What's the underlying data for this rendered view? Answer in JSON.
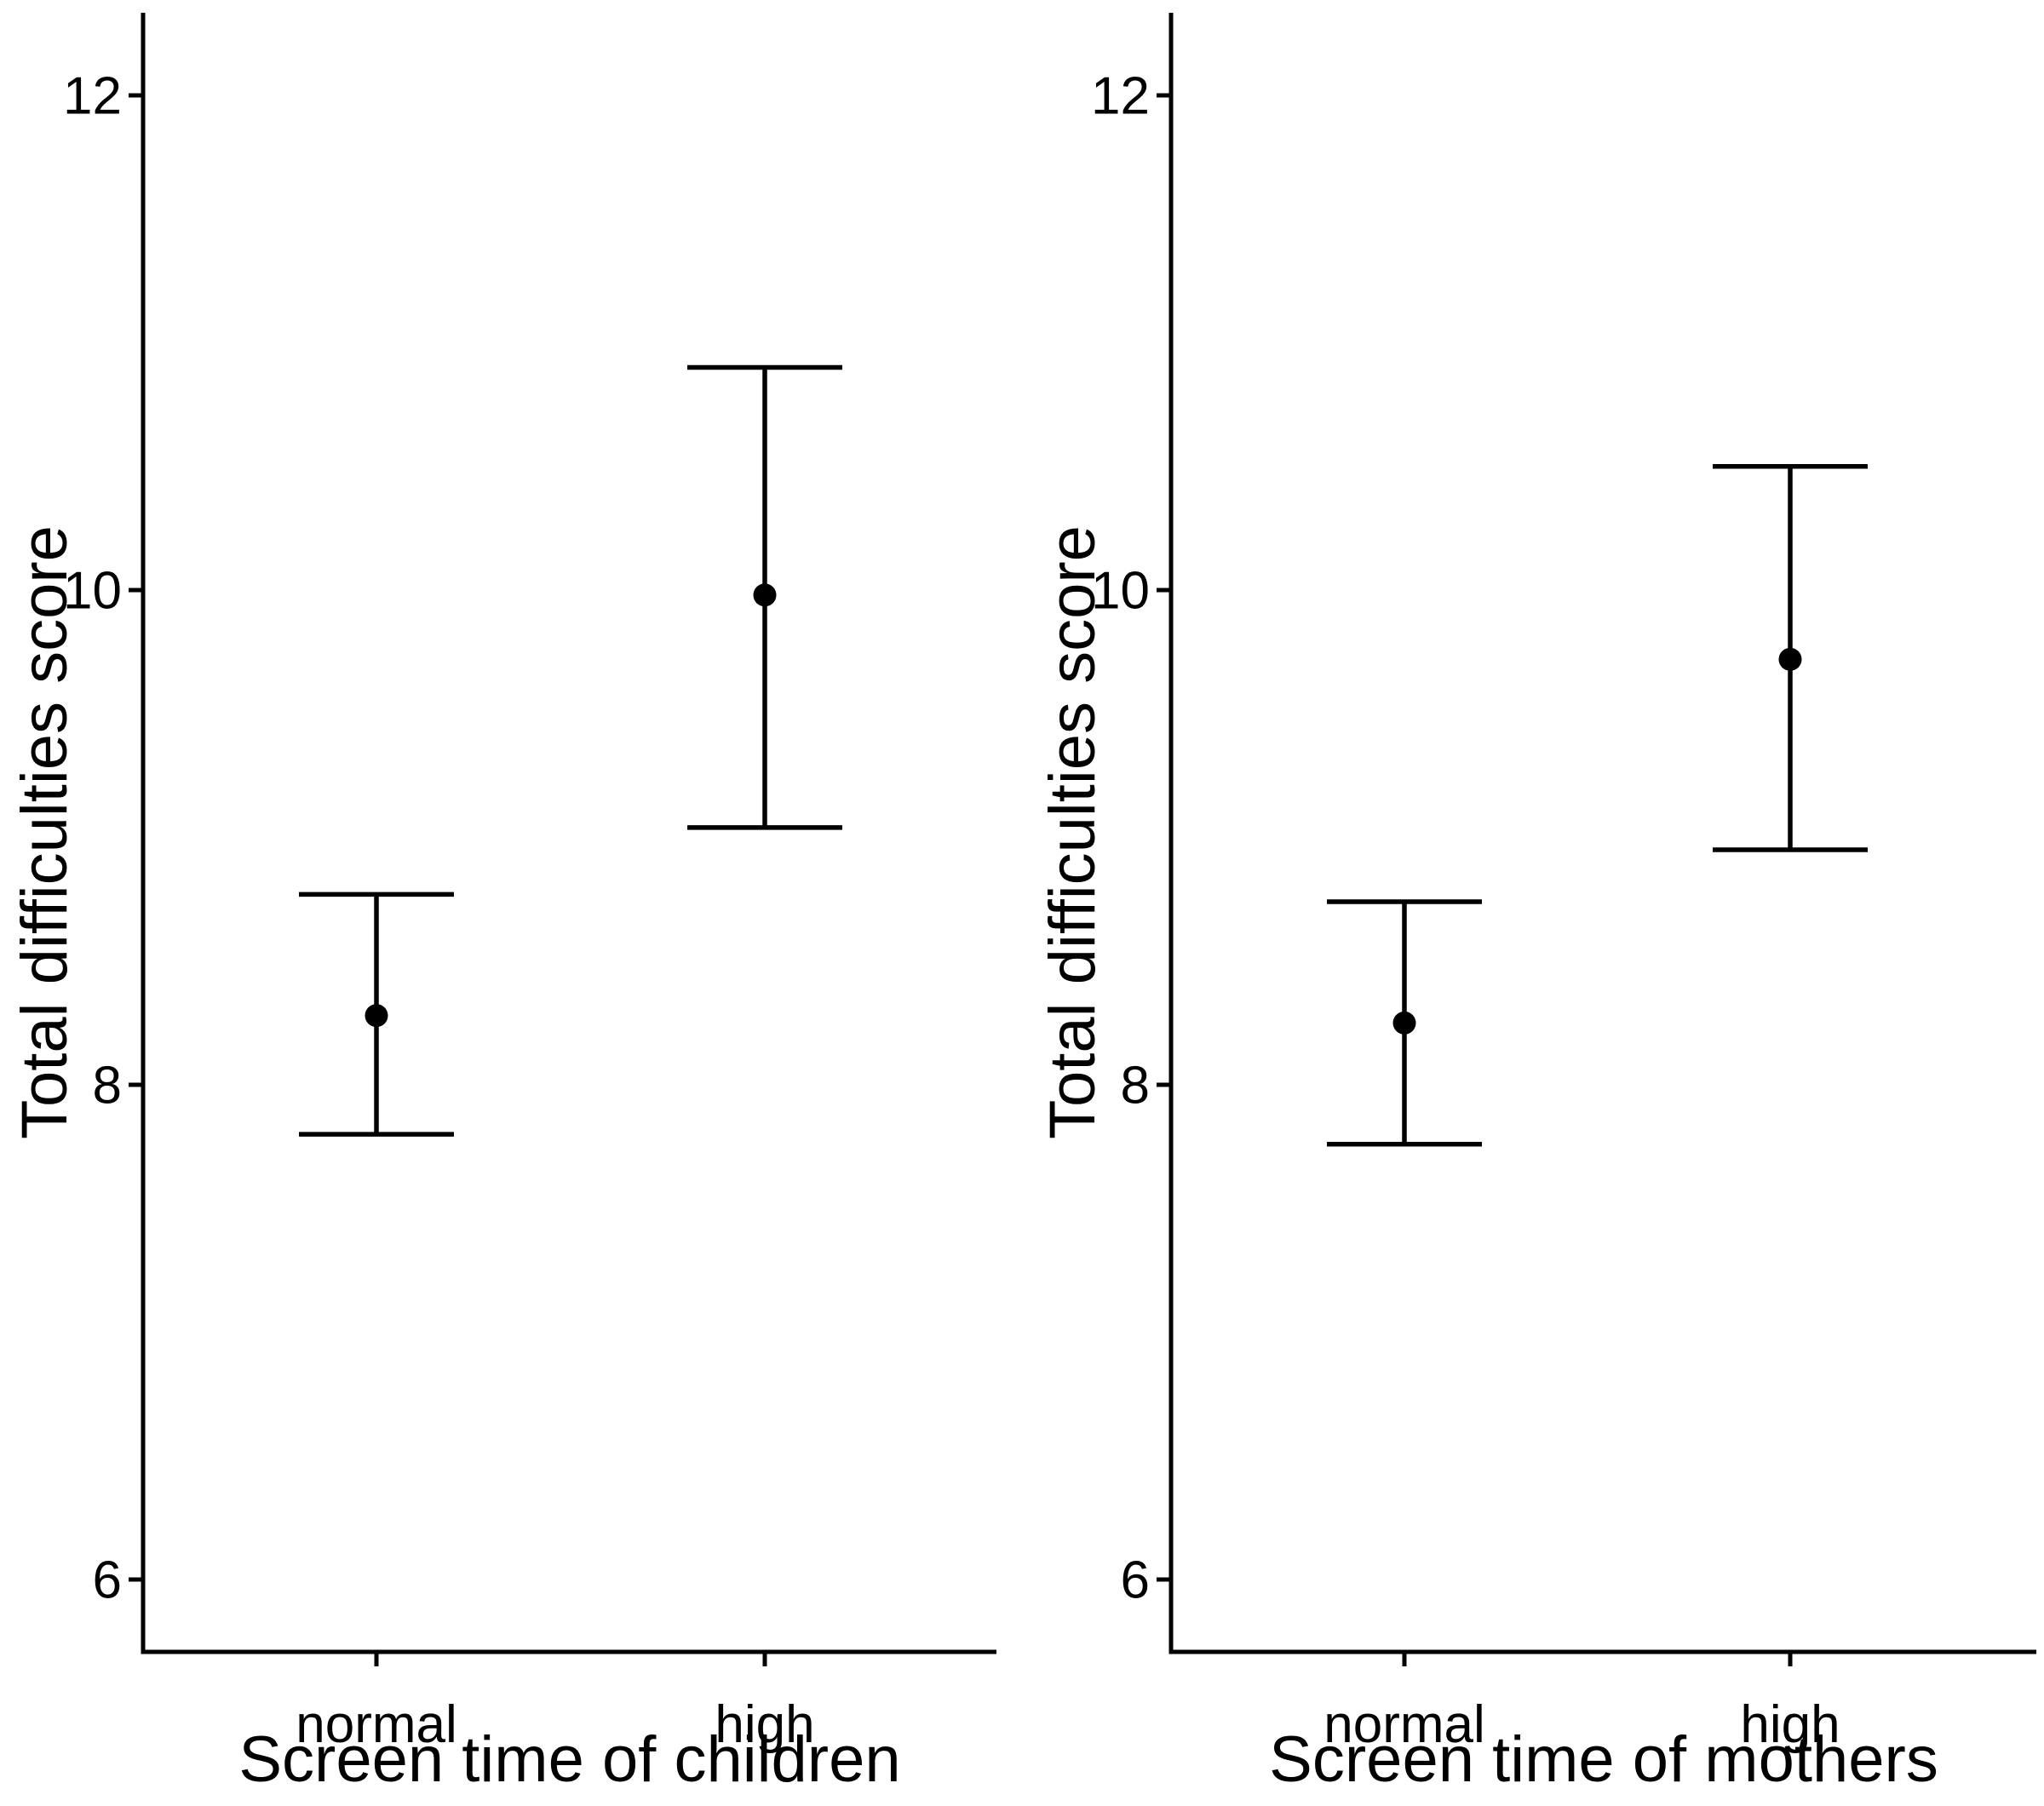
{
  "figure": {
    "kind": "two-panel mean and error-bar plot",
    "background_color": "#ffffff",
    "data_color": "#000000"
  },
  "chart_data": [
    {
      "type": "scatter",
      "subtype": "point-estimate-with-error-bars",
      "xlabel": "Screen time of children",
      "ylabel": "Total difficulties score",
      "categories": [
        "normal",
        "high"
      ],
      "series": [
        {
          "name": "Total difficulties score mean with error bars",
          "values": [
            {
              "category": "normal",
              "mean": 8.28,
              "lower": 7.8,
              "upper": 8.77
            },
            {
              "category": "high",
              "mean": 9.98,
              "lower": 9.04,
              "upper": 10.9
            }
          ]
        }
      ],
      "yticks": [
        12,
        10,
        8,
        6
      ],
      "ylim": [
        5.7,
        12.33
      ],
      "grid": false,
      "legend": "none",
      "marker": "filled-circle"
    },
    {
      "type": "scatter",
      "subtype": "point-estimate-with-error-bars",
      "xlabel": "Screen time of mothers",
      "ylabel": "Total difficulties score",
      "categories": [
        "normal",
        "high"
      ],
      "series": [
        {
          "name": "Total difficulties score mean with error bars",
          "values": [
            {
              "category": "normal",
              "mean": 8.25,
              "lower": 7.76,
              "upper": 8.74
            },
            {
              "category": "high",
              "mean": 9.72,
              "lower": 8.95,
              "upper": 10.5
            }
          ]
        }
      ],
      "yticks": [
        12,
        10,
        8,
        6
      ],
      "ylim": [
        5.7,
        12.33
      ],
      "grid": false,
      "legend": "none",
      "marker": "filled-circle"
    }
  ]
}
